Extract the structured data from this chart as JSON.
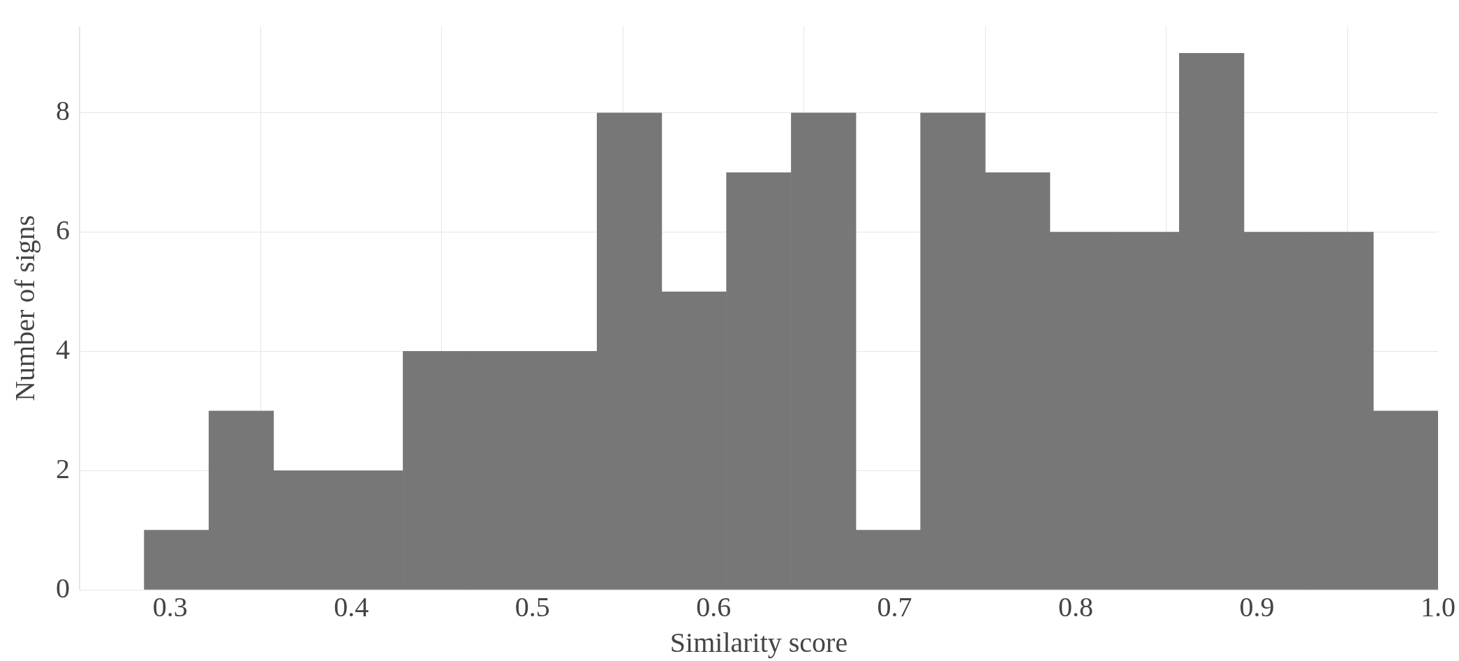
{
  "chart_data": {
    "type": "histogram",
    "xlabel": "Similarity score",
    "ylabel": "Number of signs",
    "bins": [
      0.2857,
      0.3214,
      0.3571,
      0.3929,
      0.4286,
      0.4643,
      0.5,
      0.5357,
      0.5714,
      0.6071,
      0.6429,
      0.6786,
      0.7143,
      0.75,
      0.7857,
      0.8214,
      0.8571,
      0.8929,
      0.9286,
      0.9643,
      1.0
    ],
    "values": [
      1,
      3,
      2,
      2,
      4,
      4,
      4,
      8,
      5,
      7,
      8,
      1,
      8,
      7,
      6,
      6,
      9,
      6,
      6,
      3
    ],
    "color": "#777777",
    "xlim": [
      0.25,
      1.0
    ],
    "xticks": [
      0.3,
      0.4,
      0.5,
      0.6,
      0.7,
      0.8,
      0.9,
      {
        "value": 1.0,
        "label": "1.0"
      }
    ],
    "ylim": [
      0,
      9.45
    ],
    "yticks": [
      0,
      2,
      4,
      6,
      8
    ],
    "grid": true
  }
}
